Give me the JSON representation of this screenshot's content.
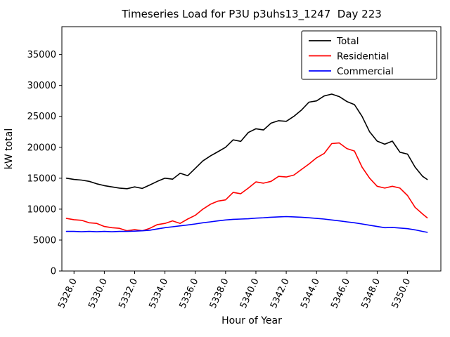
{
  "chart_data": {
    "type": "line",
    "title": "Timeseries Load for P3U p3uhs13_1247  Day 223",
    "xlabel": "Hour of Year",
    "ylabel": "kW total",
    "xlim": [
      5327.2,
      5352.2
    ],
    "ylim": [
      0,
      39500
    ],
    "grid": false,
    "x_ticks": [
      5328,
      5330,
      5332,
      5334,
      5336,
      5338,
      5340,
      5342,
      5344,
      5346,
      5348,
      5350
    ],
    "x_tick_labels": [
      "5328.0",
      "5330.0",
      "5332.0",
      "5334.0",
      "5336.0",
      "5338.0",
      "5340.0",
      "5342.0",
      "5344.0",
      "5346.0",
      "5348.0",
      "5350.0"
    ],
    "y_ticks": [
      0,
      5000,
      10000,
      15000,
      20000,
      25000,
      30000,
      35000
    ],
    "y_tick_labels": [
      "0",
      "5000",
      "10000",
      "15000",
      "20000",
      "25000",
      "30000",
      "35000"
    ],
    "legend": {
      "position": "upper right",
      "entries": [
        "Total",
        "Residential",
        "Commercial"
      ]
    },
    "x": [
      5327.5,
      5328.0,
      5328.5,
      5329.0,
      5329.5,
      5330.0,
      5330.5,
      5331.0,
      5331.5,
      5332.0,
      5332.5,
      5333.0,
      5333.5,
      5334.0,
      5334.5,
      5335.0,
      5335.5,
      5336.0,
      5336.5,
      5337.0,
      5337.5,
      5338.0,
      5338.5,
      5339.0,
      5339.5,
      5340.0,
      5340.5,
      5341.0,
      5341.5,
      5342.0,
      5342.5,
      5343.0,
      5343.5,
      5344.0,
      5344.5,
      5345.0,
      5345.5,
      5346.0,
      5346.5,
      5347.0,
      5347.5,
      5348.0,
      5348.5,
      5349.0,
      5349.5,
      5350.0,
      5350.5,
      5351.0,
      5351.3
    ],
    "series": [
      {
        "name": "Total",
        "color": "#000000",
        "values": [
          15000,
          14800,
          14700,
          14500,
          14100,
          13800,
          13600,
          13400,
          13300,
          13600,
          13350,
          13900,
          14500,
          15000,
          14850,
          15800,
          15400,
          16600,
          17800,
          18600,
          19300,
          20000,
          21200,
          20950,
          22400,
          23000,
          22800,
          23900,
          24300,
          24200,
          25000,
          26000,
          27300,
          27500,
          28300,
          28600,
          28200,
          27400,
          26900,
          25000,
          22500,
          21000,
          20500,
          21000,
          19200,
          18900,
          16800,
          15300,
          14800
        ]
      },
      {
        "name": "Residential",
        "color": "#ff0000",
        "values": [
          8500,
          8300,
          8200,
          7800,
          7700,
          7200,
          7000,
          6900,
          6500,
          6700,
          6500,
          6900,
          7500,
          7700,
          8100,
          7700,
          8400,
          9000,
          10000,
          10800,
          11300,
          11500,
          12700,
          12500,
          13400,
          14400,
          14200,
          14500,
          15300,
          15200,
          15500,
          16400,
          17300,
          18300,
          19000,
          20600,
          20700,
          19800,
          19400,
          16800,
          15000,
          13700,
          13400,
          13700,
          13400,
          12200,
          10300,
          9200,
          8600
        ]
      },
      {
        "name": "Commercial",
        "color": "#0000ff",
        "values": [
          6400,
          6400,
          6350,
          6400,
          6350,
          6400,
          6350,
          6400,
          6400,
          6450,
          6500,
          6600,
          6800,
          7000,
          7150,
          7300,
          7450,
          7600,
          7800,
          7950,
          8100,
          8250,
          8350,
          8400,
          8450,
          8550,
          8600,
          8700,
          8750,
          8800,
          8750,
          8700,
          8600,
          8500,
          8400,
          8250,
          8100,
          7950,
          7800,
          7600,
          7400,
          7200,
          7000,
          7050,
          6950,
          6850,
          6650,
          6400,
          6250
        ]
      }
    ]
  }
}
